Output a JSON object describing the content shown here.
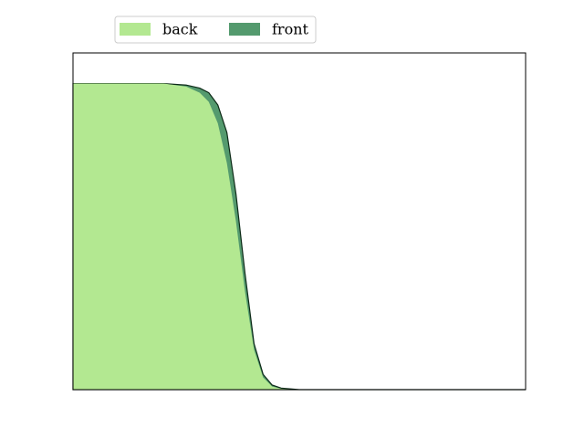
{
  "chart_data": {
    "type": "area",
    "x": [
      0,
      0.1,
      0.2,
      0.25,
      0.28,
      0.3,
      0.32,
      0.34,
      0.36,
      0.38,
      0.4,
      0.42,
      0.44,
      0.46,
      0.5,
      0.6,
      0.8,
      1.0
    ],
    "series": [
      {
        "name": "back",
        "color": "#b3e891",
        "values": [
          1,
          1,
          1,
          0.99,
          0.97,
          0.94,
          0.87,
          0.74,
          0.55,
          0.32,
          0.13,
          0.04,
          0.01,
          0.003,
          0,
          0,
          0,
          0
        ]
      },
      {
        "name": "front",
        "color": "#549a6e",
        "values": [
          1,
          1,
          1,
          0.995,
          0.985,
          0.97,
          0.93,
          0.84,
          0.64,
          0.38,
          0.15,
          0.05,
          0.015,
          0.005,
          0,
          0,
          0,
          0
        ]
      }
    ],
    "xlim": [
      0,
      1
    ],
    "ylim": [
      0,
      1.1
    ],
    "legend": "upper center"
  }
}
